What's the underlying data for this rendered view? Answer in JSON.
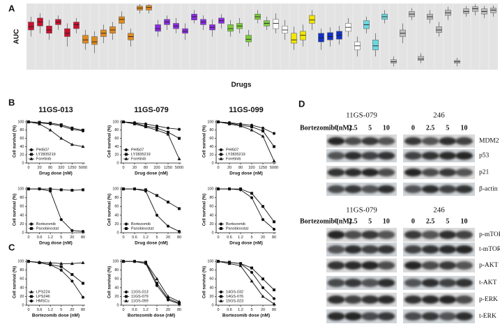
{
  "panel_labels": {
    "a": "A",
    "b": "B",
    "c": "C",
    "d": "D"
  },
  "chart_data": [
    {
      "type": "box",
      "ylabel": "AUC",
      "xlabel": "Drugs",
      "ylim": [
        0,
        1
      ],
      "background": "#e3e3e3",
      "boxes": [
        {
          "color": "#c8102e",
          "stats": [
            0.5,
            0.6,
            0.65,
            0.72,
            0.8
          ]
        },
        {
          "color": "#c8102e",
          "stats": [
            0.55,
            0.66,
            0.72,
            0.78,
            0.85
          ]
        },
        {
          "color": "#c8102e",
          "stats": [
            0.45,
            0.55,
            0.6,
            0.66,
            0.75
          ]
        },
        {
          "color": "#c8102e",
          "stats": [
            0.6,
            0.68,
            0.72,
            0.76,
            0.82
          ]
        },
        {
          "color": "#c8102e",
          "stats": [
            0.35,
            0.5,
            0.55,
            0.62,
            0.7
          ]
        },
        {
          "color": "#c8102e",
          "stats": [
            0.55,
            0.62,
            0.68,
            0.72,
            0.78
          ]
        },
        {
          "color": "#e08a1e",
          "stats": [
            0.3,
            0.4,
            0.45,
            0.52,
            0.6
          ]
        },
        {
          "color": "#e08a1e",
          "stats": [
            0.25,
            0.38,
            0.42,
            0.5,
            0.58
          ]
        },
        {
          "color": "#e08a1e",
          "stats": [
            0.4,
            0.5,
            0.55,
            0.6,
            0.68
          ]
        },
        {
          "color": "#e08a1e",
          "stats": [
            0.45,
            0.55,
            0.6,
            0.65,
            0.72
          ]
        },
        {
          "color": "#e08a1e",
          "stats": [
            0.6,
            0.7,
            0.76,
            0.8,
            0.88
          ]
        },
        {
          "color": "#e08a1e",
          "stats": [
            0.35,
            0.45,
            0.5,
            0.55,
            0.62
          ]
        },
        {
          "color": "#e08a1e",
          "stats": [
            0.85,
            0.9,
            0.93,
            0.96,
            0.99
          ]
        },
        {
          "color": "#e08a1e",
          "stats": [
            0.85,
            0.9,
            0.94,
            0.97,
            0.99
          ]
        },
        {
          "color": "#8a2be2",
          "stats": [
            0.5,
            0.58,
            0.62,
            0.68,
            0.75
          ]
        },
        {
          "color": "#8a2be2",
          "stats": [
            0.6,
            0.68,
            0.72,
            0.76,
            0.82
          ]
        },
        {
          "color": "#8a2be2",
          "stats": [
            0.55,
            0.62,
            0.66,
            0.7,
            0.78
          ]
        },
        {
          "color": "#8a2be2",
          "stats": [
            0.45,
            0.55,
            0.58,
            0.62,
            0.7
          ]
        },
        {
          "color": "#8a2be2",
          "stats": [
            0.7,
            0.75,
            0.8,
            0.84,
            0.9
          ]
        },
        {
          "color": "#8a2be2",
          "stats": [
            0.6,
            0.68,
            0.72,
            0.76,
            0.82
          ]
        },
        {
          "color": "#8a2be2",
          "stats": [
            0.5,
            0.6,
            0.64,
            0.68,
            0.76
          ]
        },
        {
          "color": "#8a2be2",
          "stats": [
            0.62,
            0.7,
            0.74,
            0.78,
            0.84
          ]
        },
        {
          "color": "#7ccd3a",
          "stats": [
            0.5,
            0.58,
            0.62,
            0.68,
            0.75
          ]
        },
        {
          "color": "#7ccd3a",
          "stats": [
            0.55,
            0.62,
            0.66,
            0.7,
            0.78
          ]
        },
        {
          "color": "#7ccd3a",
          "stats": [
            0.35,
            0.42,
            0.46,
            0.52,
            0.6
          ]
        },
        {
          "color": "#7ccd3a",
          "stats": [
            0.7,
            0.76,
            0.8,
            0.84,
            0.9
          ]
        },
        {
          "color": "#7ccd3a",
          "stats": [
            0.6,
            0.66,
            0.7,
            0.74,
            0.8
          ]
        },
        {
          "color": "#ffffff",
          "stats": [
            0.55,
            0.62,
            0.7,
            0.76,
            0.85
          ]
        },
        {
          "color": "#ffffff",
          "stats": [
            0.45,
            0.55,
            0.6,
            0.66,
            0.75
          ]
        },
        {
          "color": "#f2e600",
          "stats": [
            0.3,
            0.4,
            0.45,
            0.55,
            0.65
          ]
        },
        {
          "color": "#f2e600",
          "stats": [
            0.35,
            0.45,
            0.52,
            0.58,
            0.68
          ]
        },
        {
          "color": "#f2e600",
          "stats": [
            0.6,
            0.7,
            0.75,
            0.82,
            0.9
          ]
        },
        {
          "color": "#1030c8",
          "stats": [
            0.3,
            0.42,
            0.48,
            0.55,
            0.62
          ]
        },
        {
          "color": "#1030c8",
          "stats": [
            0.35,
            0.45,
            0.5,
            0.56,
            0.64
          ]
        },
        {
          "color": "#1030c8",
          "stats": [
            0.38,
            0.46,
            0.52,
            0.58,
            0.66
          ]
        },
        {
          "color": "#ffffff",
          "stats": [
            0.5,
            0.58,
            0.64,
            0.7,
            0.78
          ]
        },
        {
          "color": "#ffffff",
          "stats": [
            0.2,
            0.3,
            0.36,
            0.42,
            0.5
          ]
        },
        {
          "color": "#6ad8e0",
          "stats": [
            0.55,
            0.62,
            0.68,
            0.74,
            0.8
          ]
        },
        {
          "color": "#6ad8e0",
          "stats": [
            0.2,
            0.3,
            0.36,
            0.45,
            0.55
          ]
        },
        {
          "color": "#6ad8e0",
          "stats": [
            0.7,
            0.76,
            0.8,
            0.84,
            0.9
          ]
        },
        {
          "color": "#bdbdbd",
          "stats": [
            0.05,
            0.1,
            0.12,
            0.15,
            0.2
          ]
        },
        {
          "color": "#bdbdbd",
          "stats": [
            0.4,
            0.5,
            0.55,
            0.6,
            0.7
          ]
        },
        {
          "color": "#bdbdbd",
          "stats": [
            0.75,
            0.8,
            0.84,
            0.88,
            0.93
          ]
        },
        {
          "color": "#bdbdbd",
          "stats": [
            0.1,
            0.14,
            0.16,
            0.2,
            0.25
          ]
        },
        {
          "color": "#bdbdbd",
          "stats": [
            0.7,
            0.76,
            0.8,
            0.84,
            0.9
          ]
        },
        {
          "color": "#bdbdbd",
          "stats": [
            0.5,
            0.56,
            0.6,
            0.65,
            0.72
          ]
        },
        {
          "color": "#bdbdbd",
          "stats": [
            0.75,
            0.82,
            0.86,
            0.9,
            0.95
          ]
        },
        {
          "color": "#bdbdbd",
          "stats": [
            0.05,
            0.1,
            0.12,
            0.14,
            0.18
          ]
        },
        {
          "color": "#bdbdbd",
          "stats": [
            0.8,
            0.85,
            0.88,
            0.92,
            0.96
          ]
        },
        {
          "color": "#bdbdbd",
          "stats": [
            0.82,
            0.88,
            0.92,
            0.95,
            0.99
          ]
        },
        {
          "color": "#bdbdbd",
          "stats": [
            0.78,
            0.84,
            0.88,
            0.92,
            0.96
          ]
        },
        {
          "color": "#bdbdbd",
          "stats": [
            0.8,
            0.86,
            0.9,
            0.93,
            0.97
          ]
        }
      ]
    },
    {
      "type": "line",
      "title": "11GS-013",
      "ylabel": "Cell survival (%)",
      "xlabel": "Drug dose (nM)",
      "categories": [
        "0",
        "20",
        "80",
        "320",
        "1250",
        "5000"
      ],
      "ylim": [
        0,
        105
      ],
      "yticks": [
        0,
        20,
        40,
        60,
        80,
        100
      ],
      "series": [
        {
          "name": "PHI507",
          "marker": "circle",
          "values": [
            100,
            98,
            95,
            90,
            82,
            78
          ]
        },
        {
          "name": "LY2835219",
          "marker": "square",
          "values": [
            100,
            99,
            97,
            93,
            85,
            80
          ]
        },
        {
          "name": "Foretinib",
          "marker": "triangle",
          "values": [
            100,
            95,
            80,
            60,
            45,
            40
          ]
        }
      ]
    },
    {
      "type": "line",
      "title": "11GS-079",
      "ylabel": "Cell survival (%)",
      "xlabel": "Drug dose (nM)",
      "categories": [
        "0",
        "20",
        "80",
        "320",
        "1250",
        "5000"
      ],
      "ylim": [
        0,
        105
      ],
      "yticks": [
        0,
        20,
        40,
        60,
        80,
        100
      ],
      "series": [
        {
          "name": "PHI507",
          "marker": "circle",
          "values": [
            100,
            98,
            95,
            90,
            85,
            82
          ]
        },
        {
          "name": "LY2835219",
          "marker": "square",
          "values": [
            100,
            97,
            90,
            85,
            75,
            60
          ]
        },
        {
          "name": "Foretinib",
          "marker": "triangle",
          "values": [
            100,
            95,
            88,
            80,
            70,
            10
          ]
        }
      ]
    },
    {
      "type": "line",
      "title": "11GS-099",
      "ylabel": "Cell survival (%)",
      "xlabel": "Drug dose (nM)",
      "categories": [
        "0",
        "20",
        "80",
        "320",
        "1250",
        "5000"
      ],
      "ylim": [
        0,
        105
      ],
      "yticks": [
        0,
        20,
        40,
        60,
        80,
        100
      ],
      "series": [
        {
          "name": "PHI507",
          "marker": "circle",
          "values": [
            100,
            98,
            95,
            92,
            85,
            72
          ]
        },
        {
          "name": "LY2835219",
          "marker": "square",
          "values": [
            100,
            97,
            92,
            88,
            78,
            40
          ]
        },
        {
          "name": "Foretinib",
          "marker": "triangle",
          "values": [
            100,
            95,
            90,
            80,
            65,
            5
          ]
        }
      ]
    },
    {
      "type": "line",
      "ylabel": "Cell survival (%)",
      "xlabel": "Drug dose (nM)",
      "categories": [
        "0",
        "0.6",
        "1.2",
        "5",
        "20",
        "80"
      ],
      "ylim": [
        0,
        105
      ],
      "yticks": [
        0,
        20,
        40,
        60,
        80,
        100
      ],
      "series": [
        {
          "name": "Bortezomib",
          "marker": "circle",
          "values": [
            100,
            100,
            95,
            30,
            5,
            3
          ]
        },
        {
          "name": "Panobinostat",
          "marker": "square",
          "values": [
            100,
            100,
            100,
            98,
            97,
            98
          ]
        }
      ]
    },
    {
      "type": "line",
      "ylabel": "Cell survival (%)",
      "xlabel": "Drug dose (nM)",
      "categories": [
        "0",
        "0.6",
        "1.2",
        "5",
        "20",
        "80"
      ],
      "ylim": [
        0,
        105
      ],
      "yticks": [
        0,
        20,
        40,
        60,
        80,
        100
      ],
      "series": [
        {
          "name": "Bortezomib",
          "marker": "circle",
          "values": [
            100,
            100,
            95,
            40,
            15,
            3
          ]
        },
        {
          "name": "Panobinostat",
          "marker": "square",
          "values": [
            100,
            100,
            98,
            85,
            70,
            55
          ]
        }
      ]
    },
    {
      "type": "line",
      "ylabel": "Cell survival (%)",
      "xlabel": "Drug dose (nM)",
      "categories": [
        "0",
        "0.6",
        "1.2",
        "5",
        "20",
        "80"
      ],
      "ylim": [
        0,
        105
      ],
      "yticks": [
        0,
        20,
        40,
        60,
        80,
        100
      ],
      "series": [
        {
          "name": "Bortezomib",
          "marker": "circle",
          "values": [
            100,
            100,
            98,
            80,
            30,
            8
          ]
        },
        {
          "name": "Panobinostat",
          "marker": "square",
          "values": [
            100,
            100,
            100,
            90,
            60,
            25
          ]
        }
      ]
    },
    {
      "type": "line",
      "ylabel": "Cell survival (%)",
      "xlabel": "Bortezomib dose (nM)",
      "categories": [
        "0",
        "0.6",
        "1.2",
        "5",
        "20",
        "80"
      ],
      "ylim": [
        0,
        105
      ],
      "yticks": [
        0,
        20,
        40,
        60,
        80,
        100
      ],
      "series": [
        {
          "name": "LPS224",
          "marker": "triangle",
          "values": [
            100,
            98,
            97,
            95,
            95,
            97
          ]
        },
        {
          "name": "LPS246",
          "marker": "square",
          "values": [
            100,
            97,
            93,
            88,
            70,
            50
          ]
        },
        {
          "name": "HMSCs",
          "marker": "circle",
          "values": [
            100,
            97,
            92,
            80,
            55,
            18
          ]
        }
      ]
    },
    {
      "type": "line",
      "ylabel": "Cell survival (%)",
      "xlabel": "Bortezomib dose (nM)",
      "categories": [
        "0",
        "0.6",
        "1.2",
        "5",
        "20",
        "80"
      ],
      "ylim": [
        0,
        105
      ],
      "yticks": [
        0,
        20,
        40,
        60,
        80,
        100
      ],
      "series": [
        {
          "name": "11GS-013",
          "marker": "circle",
          "values": [
            100,
            100,
            95,
            45,
            12,
            3
          ]
        },
        {
          "name": "11GS-079",
          "marker": "square",
          "values": [
            100,
            100,
            98,
            50,
            15,
            5
          ]
        },
        {
          "name": "11GS-099",
          "marker": "triangle",
          "values": [
            100,
            100,
            98,
            60,
            20,
            8
          ]
        }
      ]
    },
    {
      "type": "line",
      "ylabel": "Cell survival (%)",
      "xlabel": "Bortezomib dose (nM)",
      "categories": [
        "0",
        "0.6",
        "1.2",
        "5",
        "20",
        "80"
      ],
      "ylim": [
        0,
        105
      ],
      "yticks": [
        0,
        20,
        40,
        60,
        80,
        100
      ],
      "series": [
        {
          "name": "14GS-032",
          "marker": "circle",
          "values": [
            100,
            98,
            95,
            75,
            40,
            15
          ]
        },
        {
          "name": "14GS-076",
          "marker": "square",
          "values": [
            100,
            98,
            95,
            85,
            60,
            35
          ]
        },
        {
          "name": "15GS-023",
          "marker": "triangle",
          "values": [
            100,
            95,
            90,
            55,
            20,
            3
          ]
        }
      ]
    }
  ],
  "blots": {
    "sections": [
      {
        "groups": [
          "11GS-079",
          "246"
        ],
        "treatment": "Bortezomib (nM)",
        "doses": [
          "0",
          "2.5",
          "5",
          "10"
        ],
        "rows": [
          "MDM2",
          "p53",
          "p21",
          "β-actin"
        ]
      },
      {
        "groups": [
          "11GS-079",
          "246"
        ],
        "treatment": "Bortezomib (nM)",
        "doses": [
          "0",
          "2.5",
          "5",
          "10"
        ],
        "rows": [
          "p-mTOR",
          "t-mTOR",
          "p-AKT",
          "t-AKT",
          "p-ERK",
          "t-ERK"
        ]
      }
    ]
  }
}
